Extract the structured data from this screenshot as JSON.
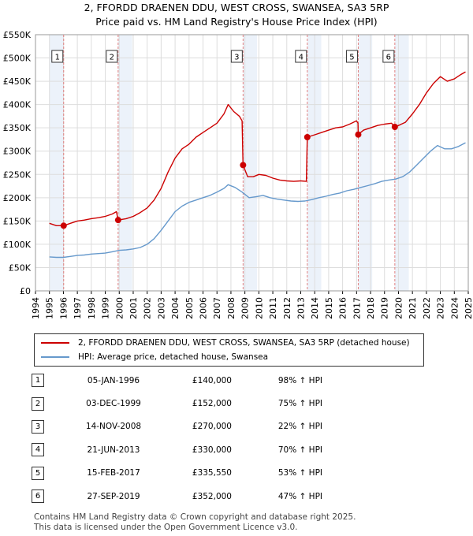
{
  "title": {
    "line1": "2, FFORDD DRAENEN DDU, WEST CROSS, SWANSEA, SA3 5RP",
    "line2": "Price paid vs. HM Land Registry's House Price Index (HPI)"
  },
  "legend": {
    "property_label": "2, FFORDD DRAENEN DDU, WEST CROSS, SWANSEA, SA3 5RP (detached house)",
    "hpi_label": "HPI: Average price, detached house, Swansea"
  },
  "colors": {
    "property": "#cc0000",
    "hpi": "#6699cc",
    "grid": "#dddddd",
    "shade": "#ecf2fa",
    "marker_line": "#e08080"
  },
  "chart_data": {
    "type": "line",
    "xlim": [
      1994,
      2025
    ],
    "ylim": [
      0,
      550000
    ],
    "x_ticks": [
      "1994",
      "1995",
      "1996",
      "1997",
      "1998",
      "1999",
      "2000",
      "2001",
      "2002",
      "2003",
      "2004",
      "2005",
      "2006",
      "2007",
      "2008",
      "2009",
      "2010",
      "2011",
      "2012",
      "2013",
      "2014",
      "2015",
      "2016",
      "2017",
      "2018",
      "2019",
      "2020",
      "2021",
      "2022",
      "2023",
      "2024",
      "2025"
    ],
    "y_ticks": [
      {
        "value": 0,
        "label": "£0"
      },
      {
        "value": 50000,
        "label": "£50K"
      },
      {
        "value": 100000,
        "label": "£100K"
      },
      {
        "value": 150000,
        "label": "£150K"
      },
      {
        "value": 200000,
        "label": "£200K"
      },
      {
        "value": 250000,
        "label": "£250K"
      },
      {
        "value": 300000,
        "label": "£300K"
      },
      {
        "value": 350000,
        "label": "£350K"
      },
      {
        "value": 400000,
        "label": "£400K"
      },
      {
        "value": 450000,
        "label": "£450K"
      },
      {
        "value": 500000,
        "label": "£500K"
      },
      {
        "value": 550000,
        "label": "£550K"
      }
    ],
    "shaded_bands": [
      [
        1995.02,
        1996.02
      ],
      [
        1999.92,
        2000.92
      ],
      [
        2008.87,
        2009.87
      ],
      [
        2013.47,
        2014.47
      ],
      [
        2017.12,
        2018.12
      ],
      [
        2019.74,
        2020.74
      ]
    ],
    "series": [
      {
        "name": "2, FFORDD DRAENEN DDU, WEST CROSS, SWANSEA, SA3 5RP (detached house)",
        "color": "#cc0000",
        "points": [
          [
            1995.0,
            145000
          ],
          [
            1995.5,
            140000
          ],
          [
            1996.02,
            140000
          ],
          [
            1996.5,
            145000
          ],
          [
            1997,
            150000
          ],
          [
            1997.5,
            152000
          ],
          [
            1998,
            155000
          ],
          [
            1998.5,
            157000
          ],
          [
            1999,
            160000
          ],
          [
            1999.5,
            165000
          ],
          [
            1999.8,
            170000
          ],
          [
            1999.92,
            152000
          ],
          [
            2000.5,
            155000
          ],
          [
            2001,
            160000
          ],
          [
            2001.5,
            168000
          ],
          [
            2002,
            178000
          ],
          [
            2002.5,
            195000
          ],
          [
            2003,
            220000
          ],
          [
            2003.5,
            255000
          ],
          [
            2004,
            285000
          ],
          [
            2004.5,
            305000
          ],
          [
            2005,
            315000
          ],
          [
            2005.5,
            330000
          ],
          [
            2006,
            340000
          ],
          [
            2006.5,
            350000
          ],
          [
            2007,
            360000
          ],
          [
            2007.5,
            380000
          ],
          [
            2007.8,
            400000
          ],
          [
            2008.2,
            385000
          ],
          [
            2008.6,
            375000
          ],
          [
            2008.8,
            365000
          ],
          [
            2008.87,
            270000
          ],
          [
            2009.2,
            245000
          ],
          [
            2009.6,
            245000
          ],
          [
            2010,
            250000
          ],
          [
            2010.5,
            248000
          ],
          [
            2011,
            242000
          ],
          [
            2011.5,
            238000
          ],
          [
            2012,
            236000
          ],
          [
            2012.5,
            235000
          ],
          [
            2013,
            236000
          ],
          [
            2013.4,
            235000
          ],
          [
            2013.47,
            330000
          ],
          [
            2014,
            335000
          ],
          [
            2014.5,
            340000
          ],
          [
            2015,
            345000
          ],
          [
            2015.5,
            350000
          ],
          [
            2016,
            352000
          ],
          [
            2016.5,
            358000
          ],
          [
            2017,
            365000
          ],
          [
            2017.1,
            360000
          ],
          [
            2017.12,
            335550
          ],
          [
            2017.5,
            345000
          ],
          [
            2018,
            350000
          ],
          [
            2018.5,
            355000
          ],
          [
            2019,
            358000
          ],
          [
            2019.5,
            360000
          ],
          [
            2019.74,
            352000
          ],
          [
            2020,
            355000
          ],
          [
            2020.5,
            362000
          ],
          [
            2021,
            380000
          ],
          [
            2021.5,
            400000
          ],
          [
            2022,
            425000
          ],
          [
            2022.5,
            445000
          ],
          [
            2023,
            460000
          ],
          [
            2023.5,
            450000
          ],
          [
            2024,
            455000
          ],
          [
            2024.5,
            465000
          ],
          [
            2024.8,
            470000
          ]
        ]
      },
      {
        "name": "HPI: Average price, detached house, Swansea",
        "color": "#6699cc",
        "points": [
          [
            1995.0,
            73000
          ],
          [
            1995.5,
            72000
          ],
          [
            1996,
            72000
          ],
          [
            1996.5,
            74000
          ],
          [
            1997,
            76000
          ],
          [
            1997.5,
            77000
          ],
          [
            1998,
            79000
          ],
          [
            1998.5,
            80000
          ],
          [
            1999,
            81000
          ],
          [
            1999.5,
            84000
          ],
          [
            2000,
            87000
          ],
          [
            2000.5,
            88000
          ],
          [
            2001,
            90000
          ],
          [
            2001.5,
            93000
          ],
          [
            2002,
            100000
          ],
          [
            2002.5,
            112000
          ],
          [
            2003,
            130000
          ],
          [
            2003.5,
            150000
          ],
          [
            2004,
            170000
          ],
          [
            2004.5,
            182000
          ],
          [
            2005,
            190000
          ],
          [
            2005.5,
            195000
          ],
          [
            2006,
            200000
          ],
          [
            2006.5,
            205000
          ],
          [
            2007,
            212000
          ],
          [
            2007.5,
            220000
          ],
          [
            2007.8,
            228000
          ],
          [
            2008.3,
            222000
          ],
          [
            2008.8,
            212000
          ],
          [
            2009.3,
            200000
          ],
          [
            2009.8,
            202000
          ],
          [
            2010.3,
            205000
          ],
          [
            2010.8,
            200000
          ],
          [
            2011.3,
            197000
          ],
          [
            2011.8,
            195000
          ],
          [
            2012.3,
            193000
          ],
          [
            2012.8,
            192000
          ],
          [
            2013.3,
            193000
          ],
          [
            2013.8,
            196000
          ],
          [
            2014.3,
            200000
          ],
          [
            2014.8,
            203000
          ],
          [
            2015.3,
            207000
          ],
          [
            2015.8,
            210000
          ],
          [
            2016.3,
            215000
          ],
          [
            2016.8,
            218000
          ],
          [
            2017.3,
            222000
          ],
          [
            2017.8,
            226000
          ],
          [
            2018.3,
            230000
          ],
          [
            2018.8,
            235000
          ],
          [
            2019.3,
            238000
          ],
          [
            2019.8,
            240000
          ],
          [
            2020.3,
            245000
          ],
          [
            2020.8,
            255000
          ],
          [
            2021.3,
            270000
          ],
          [
            2021.8,
            285000
          ],
          [
            2022.3,
            300000
          ],
          [
            2022.8,
            312000
          ],
          [
            2023.3,
            305000
          ],
          [
            2023.8,
            305000
          ],
          [
            2024.3,
            310000
          ],
          [
            2024.8,
            318000
          ]
        ]
      }
    ],
    "sales": [
      {
        "label": "1",
        "x": 1996.02,
        "y": 140000
      },
      {
        "label": "2",
        "x": 1999.92,
        "y": 152000
      },
      {
        "label": "3",
        "x": 2008.87,
        "y": 270000
      },
      {
        "label": "4",
        "x": 2013.47,
        "y": 330000
      },
      {
        "label": "5",
        "x": 2017.12,
        "y": 335550
      },
      {
        "label": "6",
        "x": 2019.74,
        "y": 352000
      }
    ]
  },
  "transactions": [
    {
      "num": "1",
      "date": "05-JAN-1996",
      "price": "£140,000",
      "hpi": "98% ↑ HPI"
    },
    {
      "num": "2",
      "date": "03-DEC-1999",
      "price": "£152,000",
      "hpi": "75% ↑ HPI"
    },
    {
      "num": "3",
      "date": "14-NOV-2008",
      "price": "£270,000",
      "hpi": "22% ↑ HPI"
    },
    {
      "num": "4",
      "date": "21-JUN-2013",
      "price": "£330,000",
      "hpi": "70% ↑ HPI"
    },
    {
      "num": "5",
      "date": "15-FEB-2017",
      "price": "£335,550",
      "hpi": "53% ↑ HPI"
    },
    {
      "num": "6",
      "date": "27-SEP-2019",
      "price": "£352,000",
      "hpi": "47% ↑ HPI"
    }
  ],
  "footer": {
    "line1": "Contains HM Land Registry data © Crown copyright and database right 2025.",
    "line2": "This data is licensed under the Open Government Licence v3.0."
  }
}
